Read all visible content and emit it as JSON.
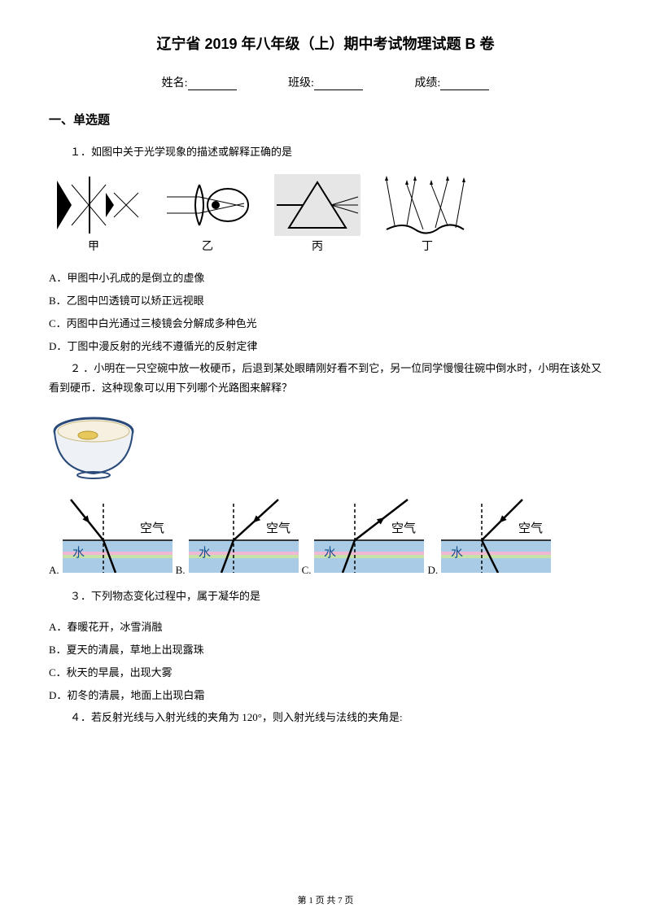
{
  "title": "辽宁省 2019 年八年级（上）期中考试物理试题 B 卷",
  "info": {
    "name_label": "姓名:",
    "class_label": "班级:",
    "score_label": "成绩:"
  },
  "section1_heading": "一、单选题",
  "q1": {
    "text": "１．如图中关于光学现象的描述或解释正确的是",
    "optA": "A．甲图中小孔成的是倒立的虚像",
    "optB": "B．乙图中凹透镜可以矫正远视眼",
    "optC": "C．丙图中白光通过三棱镜会分解成多种色光",
    "optD": "D．丁图中漫反射的光线不遵循光的反射定律",
    "fig_labels": [
      "甲",
      "乙",
      "丙",
      "丁"
    ]
  },
  "q2": {
    "text": "２ ．小明在一只空碗中放一枚硬币，后退到某处眼睛刚好看不到它，另一位同学慢慢往碗中倒水时，小明在该处又看到硬币．这种现象可以用下列哪个光路图来解释？",
    "labels": [
      "A.",
      "B.",
      "C.",
      "D."
    ],
    "air_label": "空气",
    "water_label": "水",
    "water_color": "#a9cbe6",
    "line_color": "#000000",
    "dash_color": "#000000",
    "gradient_top": "#f0b9d3",
    "gradient_bot": "#c6e2a9"
  },
  "q3": {
    "text": "３．下列物态变化过程中，属于凝华的是",
    "optA": "A．春暖花开，冰雪消融",
    "optB": "B．夏天的清晨，草地上出现露珠",
    "optC": "C．秋天的早晨，出现大雾",
    "optD": "D．初冬的清晨，地面上出现白霜"
  },
  "q4": {
    "text": "４．若反射光线与入射光线的夹角为 120°，则入射光线与法线的夹角是:"
  },
  "footer": "第 1 页 共 7 页",
  "colors": {
    "text": "#000000",
    "background": "#ffffff"
  }
}
